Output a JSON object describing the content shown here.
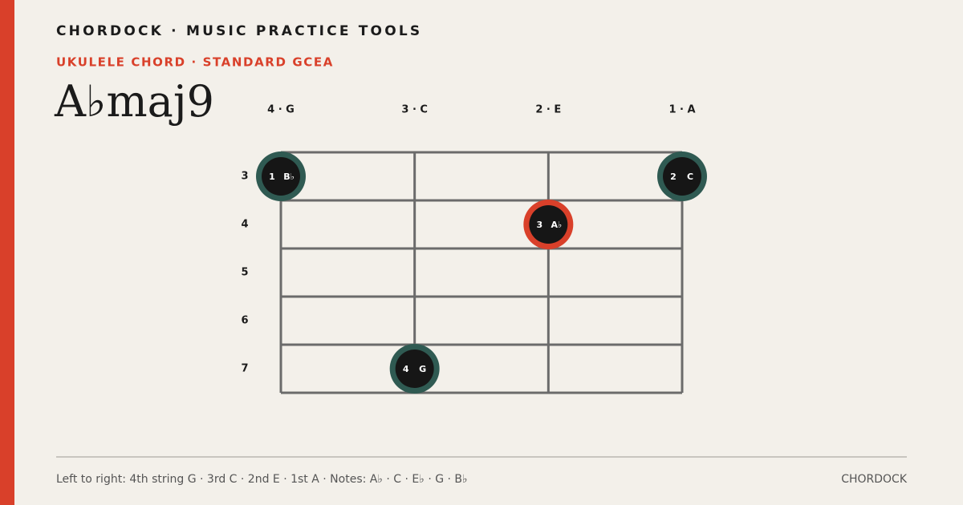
{
  "header": {
    "brand": "CHORDOCK · MUSIC PRACTICE TOOLS",
    "subtitle": "UKULELE CHORD · STANDARD GCEA",
    "title": "A♭maj9"
  },
  "diagram": {
    "frets": [
      3,
      4,
      5,
      6,
      7
    ],
    "strings": [
      {
        "label": "4 · G",
        "fret": 3,
        "finger": "1",
        "note": "B♭",
        "color": "#2f5a52"
      },
      {
        "label": "3 · C",
        "fret": 7,
        "finger": "4",
        "note": "G",
        "color": "#2f5a52"
      },
      {
        "label": "2 · E",
        "fret": 4,
        "finger": "3",
        "note": "A♭",
        "color": "#d9402a"
      },
      {
        "label": "1 · A",
        "fret": 3,
        "finger": "2",
        "note": "C",
        "color": "#2f5a52"
      }
    ]
  },
  "footer": {
    "caption": "Left to right: 4th string G · 3rd C · 2nd E · 1st A · Notes: A♭ · C · E♭ · G · B♭",
    "brand": "CHORDOCK"
  }
}
